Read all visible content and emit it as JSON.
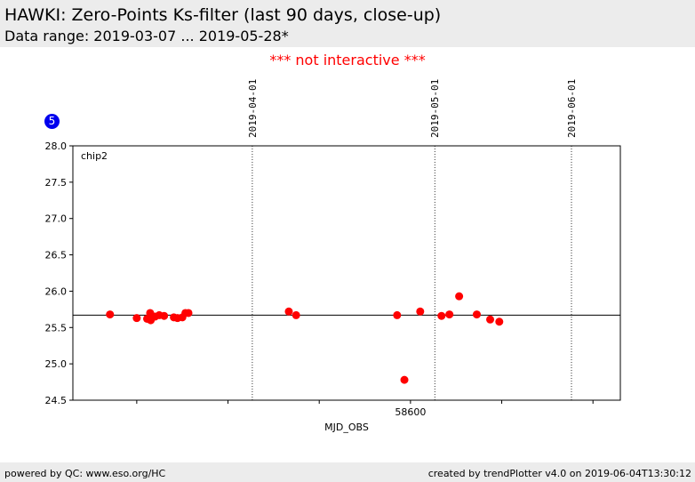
{
  "header": {
    "title": "HAWKI: Zero-Points Ks-filter (last 90 days, close-up)",
    "subtitle": "Data range: 2019-03-07 ... 2019-05-28*"
  },
  "notice": "*** not interactive ***",
  "badge": "5",
  "footer": {
    "left": "powered by QC: www.eso.org/HC",
    "right": "created by trendPlotter v4.0 on 2019-06-04T13:30:12"
  },
  "colors": {
    "points": "#ff0000",
    "notice": "#ff0000",
    "badge": "#0000ee",
    "band": "#ececec"
  },
  "chart_data": {
    "type": "scatter",
    "panel_label": "chip2",
    "xlabel": "MJD_OBS",
    "ylabel": "",
    "xlim": [
      58544.5,
      58634.5
    ],
    "ylim": [
      24.5,
      28.0
    ],
    "yticks": [
      24.5,
      25.0,
      25.5,
      26.0,
      26.5,
      27.0,
      27.5,
      28.0
    ],
    "yticklabels": [
      "24.5",
      "25.0",
      "25.5",
      "26.0",
      "26.5",
      "27.0",
      "27.5",
      "28.0"
    ],
    "xticks_minor": [
      58555,
      58570,
      58585,
      58600,
      58615,
      58630
    ],
    "xticks_labeled": [
      {
        "value": 58600,
        "label": "58600"
      }
    ],
    "date_lines": [
      {
        "mjd": 58574,
        "label": "2019-04-01"
      },
      {
        "mjd": 58604,
        "label": "2019-05-01"
      },
      {
        "mjd": 58635,
        "label": "2019-06-01"
      }
    ],
    "reference_line": 25.67,
    "grid": false,
    "series": [
      {
        "x": [
          58550.6,
          58555.0,
          58556.7,
          58557.3,
          58557.2,
          58557.5,
          58558.0,
          58558.7,
          58559.5,
          58561.1,
          58561.7,
          58562.5,
          58563.0,
          58563.5,
          58580.0,
          58581.2,
          58599.0,
          58597.8,
          58601.6,
          58605.1,
          58606.4,
          58608.0,
          58610.9,
          58613.1,
          58614.6
        ],
        "y": [
          25.68,
          25.63,
          25.62,
          25.6,
          25.7,
          25.66,
          25.65,
          25.67,
          25.66,
          25.64,
          25.63,
          25.64,
          25.7,
          25.7,
          25.72,
          25.67,
          24.78,
          25.67,
          25.72,
          25.66,
          25.68,
          25.93,
          25.68,
          25.61,
          25.58
        ]
      }
    ]
  }
}
